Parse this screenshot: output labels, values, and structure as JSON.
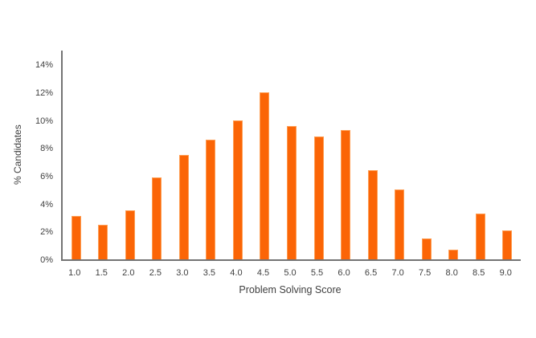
{
  "chart_data": {
    "type": "bar",
    "xlabel": "Problem Solving Score",
    "ylabel": "% Candidates",
    "categories": [
      "1.0",
      "1.5",
      "2.0",
      "2.5",
      "3.0",
      "3.5",
      "4.0",
      "4.5",
      "5.0",
      "5.5",
      "6.0",
      "6.5",
      "7.0",
      "7.5",
      "8.0",
      "8.5",
      "9.0"
    ],
    "values": [
      3.1,
      2.5,
      3.5,
      5.9,
      7.5,
      8.6,
      10.0,
      12.0,
      9.6,
      8.8,
      9.3,
      6.4,
      5.0,
      1.5,
      0.7,
      3.3,
      2.1
    ],
    "ylim": [
      0,
      15
    ],
    "ytick_labels": [
      "0%",
      "2%",
      "4%",
      "6%",
      "8%",
      "10%",
      "12%",
      "14%"
    ],
    "grid": false,
    "legend": false,
    "colors": {
      "bar": "#FB6506",
      "bar_edge": "#FE9E54",
      "axis": "#737373",
      "text": "#3F3F3F"
    }
  }
}
